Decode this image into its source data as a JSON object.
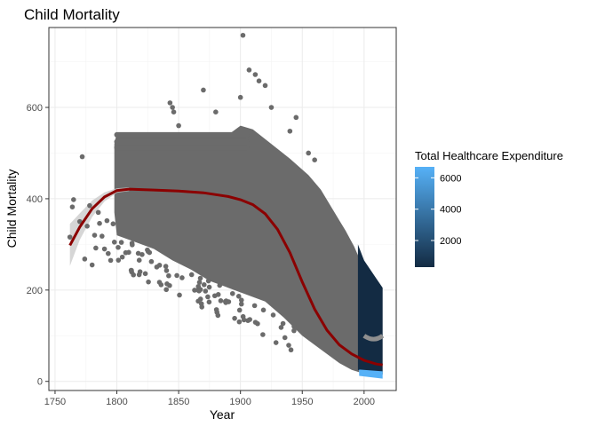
{
  "chart_data": {
    "type": "scatter",
    "title": "Child Mortality",
    "xlabel": "Year",
    "ylabel": "Child Mortality",
    "xlim": [
      1745,
      2026
    ],
    "ylim": [
      -20,
      775
    ],
    "x_ticks": [
      1750,
      1800,
      1850,
      1900,
      1950,
      2000
    ],
    "y_ticks": [
      0,
      200,
      400,
      600
    ],
    "grid": true,
    "colors": {
      "points": "#6b6b6b",
      "smooth_line": "#8b0000",
      "confidence_band": "#c8c8c8",
      "legend_low": "#132b43",
      "legend_high": "#56b1f7"
    },
    "legend": {
      "title": "Total Healthcare Expenditure",
      "position": "right",
      "range": [
        300,
        6700
      ],
      "ticks": [
        2000,
        4000,
        6000
      ]
    },
    "smooth_line": {
      "x": [
        1762,
        1770,
        1780,
        1790,
        1800,
        1810,
        1830,
        1850,
        1870,
        1890,
        1900,
        1910,
        1920,
        1930,
        1940,
        1950,
        1960,
        1970,
        1980,
        1990,
        2000,
        2010,
        2015
      ],
      "y": [
        298,
        338,
        378,
        404,
        418,
        421,
        419,
        417,
        413,
        405,
        398,
        387,
        367,
        333,
        282,
        218,
        158,
        112,
        80,
        60,
        46,
        38,
        36
      ]
    },
    "band": {
      "x": [
        1762,
        1770,
        1780,
        1790,
        1800,
        1810
      ],
      "upper": [
        345,
        368,
        396,
        414,
        423,
        425
      ],
      "lower": [
        253,
        310,
        360,
        394,
        413,
        417
      ]
    },
    "early_points": {
      "x": [
        1762,
        1764,
        1765,
        1770,
        1772,
        1774,
        1776,
        1778,
        1780,
        1782,
        1783,
        1785,
        1786,
        1788,
        1790,
        1792,
        1793,
        1795,
        1797,
        1798
      ],
      "y": [
        316,
        382,
        398,
        350,
        492,
        268,
        340,
        385,
        255,
        320,
        292,
        370,
        346,
        318,
        290,
        352,
        280,
        265,
        345,
        305
      ]
    },
    "outliers": {
      "x": [
        1843,
        1845,
        1846,
        1850,
        1870,
        1880,
        1900,
        1902,
        1907,
        1912,
        1915,
        1920,
        1925,
        1940,
        1945,
        1955,
        1960
      ],
      "y": [
        610,
        600,
        590,
        560,
        638,
        590,
        622,
        758,
        682,
        672,
        658,
        648,
        600,
        548,
        578,
        500,
        485
      ]
    },
    "plateau_lines": [
      540,
      525,
      512
    ]
  }
}
